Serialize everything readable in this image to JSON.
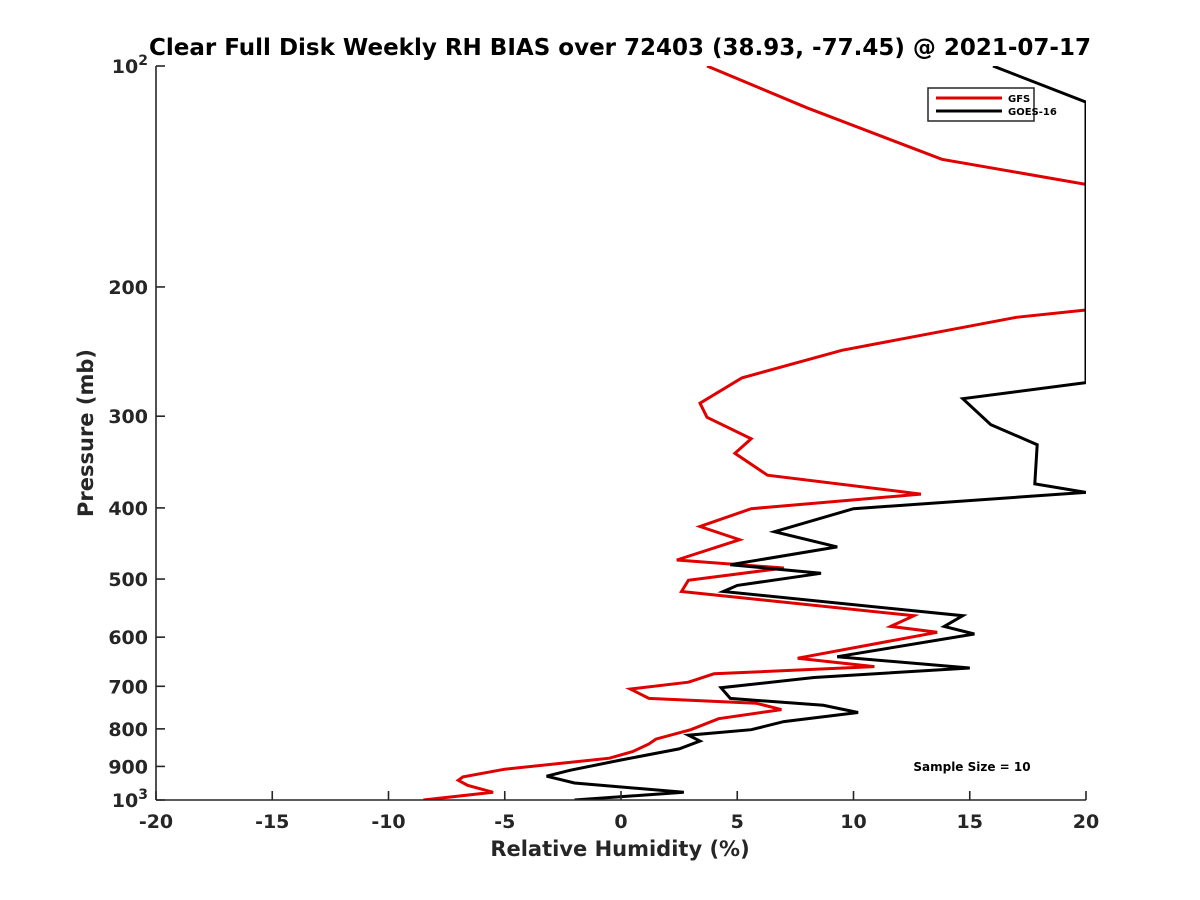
{
  "chart_data": {
    "type": "line",
    "title": "Clear Full Disk Weekly RH BIAS over 72403 (38.93, -77.45) @ 2021-07-17",
    "xlabel": "Relative Humidity (%)",
    "ylabel": "Pressure (mb)",
    "xlim": [
      -20,
      20
    ],
    "ylim": [
      100,
      1000
    ],
    "y_scale": "log",
    "y_reversed": true,
    "x_ticks": [
      "-20",
      "-15",
      "-10",
      "-5",
      "0",
      "5",
      "10",
      "15",
      "20"
    ],
    "y_ticks": [
      {
        "value": 100,
        "label": "10",
        "sup": "2"
      },
      {
        "value": 200,
        "label": "200",
        "sup": ""
      },
      {
        "value": 300,
        "label": "300",
        "sup": ""
      },
      {
        "value": 400,
        "label": "400",
        "sup": ""
      },
      {
        "value": 500,
        "label": "500",
        "sup": ""
      },
      {
        "value": 600,
        "label": "600",
        "sup": ""
      },
      {
        "value": 700,
        "label": "700",
        "sup": ""
      },
      {
        "value": 800,
        "label": "800",
        "sup": ""
      },
      {
        "value": 900,
        "label": "900",
        "sup": ""
      },
      {
        "value": 1000,
        "label": "10",
        "sup": "3"
      }
    ],
    "grid": false,
    "legend_position": "top-right",
    "note": "Sample Size = 10",
    "series": [
      {
        "name": "GFS",
        "color": "#e00000",
        "points": [
          [
            3.7,
            100
          ],
          [
            8,
            114
          ],
          [
            13.8,
            134
          ],
          [
            20,
            145
          ],
          [
            20,
            215
          ],
          [
            17,
            220
          ],
          [
            9.5,
            244
          ],
          [
            5.2,
            266
          ],
          [
            3.4,
            288
          ],
          [
            3.7,
            301
          ],
          [
            5.6,
            322
          ],
          [
            4.9,
            337
          ],
          [
            6.3,
            361
          ],
          [
            12.9,
            383
          ],
          [
            5.6,
            401
          ],
          [
            3.4,
            424
          ],
          [
            5.1,
            442
          ],
          [
            2.4,
            471
          ],
          [
            7,
            483
          ],
          [
            2.9,
            502
          ],
          [
            2.6,
            520
          ],
          [
            12.6,
            561
          ],
          [
            11.6,
            580
          ],
          [
            13.6,
            591
          ],
          [
            7.6,
            641
          ],
          [
            10.9,
            658
          ],
          [
            4,
            673
          ],
          [
            2.9,
            691
          ],
          [
            0.4,
            706
          ],
          [
            1.2,
            727
          ],
          [
            5.8,
            738
          ],
          [
            6.9,
            753
          ],
          [
            4.2,
            775
          ],
          [
            3,
            802
          ],
          [
            1.5,
            826
          ],
          [
            1.2,
            839
          ],
          [
            0.5,
            859
          ],
          [
            -0.5,
            877
          ],
          [
            -5,
            908
          ],
          [
            -6.8,
            930
          ],
          [
            -7,
            940
          ],
          [
            -6.6,
            955
          ],
          [
            -5.5,
            976
          ],
          [
            -8.5,
            1000
          ]
        ]
      },
      {
        "name": "GOES-16",
        "color": "#000000",
        "points": [
          [
            16,
            100
          ],
          [
            20,
            112
          ],
          [
            20,
            270
          ],
          [
            14.7,
            284
          ],
          [
            15.9,
            308
          ],
          [
            17.9,
            328
          ],
          [
            17.8,
            371
          ],
          [
            20,
            381
          ],
          [
            10,
            401
          ],
          [
            6.6,
            431
          ],
          [
            9.3,
            452
          ],
          [
            4.7,
            478
          ],
          [
            8.6,
            491
          ],
          [
            5,
            510
          ],
          [
            4.4,
            520
          ],
          [
            14.7,
            561
          ],
          [
            13.9,
            580
          ],
          [
            15.2,
            594
          ],
          [
            9.3,
            638
          ],
          [
            15,
            661
          ],
          [
            8.3,
            681
          ],
          [
            4.3,
            703
          ],
          [
            4.7,
            727
          ],
          [
            8.7,
            743
          ],
          [
            10.2,
            760
          ],
          [
            7,
            782
          ],
          [
            5.6,
            802
          ],
          [
            2.9,
            816
          ],
          [
            3.4,
            831
          ],
          [
            2.5,
            852
          ],
          [
            0,
            882
          ],
          [
            -2.2,
            911
          ],
          [
            -3.2,
            928
          ],
          [
            -2,
            948
          ],
          [
            2.7,
            976
          ],
          [
            -2,
            1000
          ]
        ]
      }
    ]
  }
}
